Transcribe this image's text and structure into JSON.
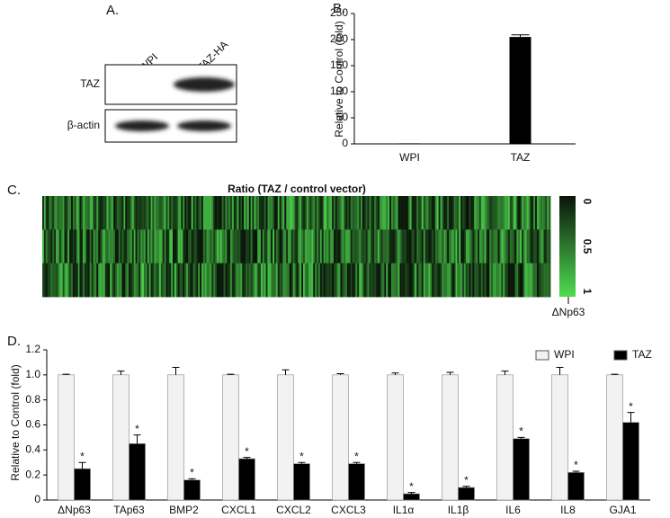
{
  "panel_a": {
    "label": "A.",
    "lanes": [
      "WPI",
      "TAZ-HA"
    ],
    "rows": [
      "TAZ",
      "β-actin"
    ]
  },
  "panel_c": {
    "label": "C.",
    "title": "Ratio (TAZ / control vector)",
    "colorbar": {
      "lim": [
        0,
        1
      ],
      "ticks": [
        0,
        0.5,
        1
      ]
    },
    "annotation": "ΔNp63"
  },
  "chart_data": [
    {
      "type": "bar",
      "panel": "B.",
      "ylabel": "Relative to Control (fold)",
      "categories": [
        "WPI",
        "TAZ"
      ],
      "values": [
        1,
        205
      ],
      "errors": [
        0,
        4
      ],
      "color": "#000000",
      "ylim": [
        0,
        250
      ],
      "yticks": [
        0,
        50,
        100,
        150,
        200,
        250
      ]
    },
    {
      "type": "grouped_bar",
      "panel": "D.",
      "ylabel": "Relative to Control (fold)",
      "categories": [
        "ΔNp63",
        "TAp63",
        "BMP2",
        "CXCL1",
        "CXCL2",
        "CXCL3",
        "IL1α",
        "IL1β",
        "IL6",
        "IL8",
        "GJA1"
      ],
      "series": [
        {
          "name": "WPI",
          "color": "#f2f2f2",
          "values": [
            1,
            1,
            1,
            1,
            1,
            1,
            1,
            1,
            1,
            1,
            1
          ],
          "errors": [
            0.005,
            0.03,
            0.06,
            0.005,
            0.04,
            0.01,
            0.015,
            0.02,
            0.03,
            0.06,
            0.005
          ]
        },
        {
          "name": "TAZ",
          "color": "#000000",
          "values": [
            0.25,
            0.45,
            0.16,
            0.33,
            0.29,
            0.29,
            0.05,
            0.1,
            0.49,
            0.22,
            0.62
          ],
          "errors": [
            0.05,
            0.07,
            0.01,
            0.01,
            0.01,
            0.01,
            0.01,
            0.01,
            0.01,
            0.01,
            0.08
          ]
        }
      ],
      "significance": [
        "*",
        "*",
        "*",
        "*",
        "*",
        "*",
        "*",
        "*",
        "*",
        "*",
        "*"
      ],
      "ylim": [
        0,
        1.2
      ],
      "yticks": [
        0,
        0.2,
        0.4,
        0.6,
        0.8,
        {
          "value": 1,
          "label": "1.0"
        },
        1.2
      ],
      "legend": "upper right"
    }
  ]
}
